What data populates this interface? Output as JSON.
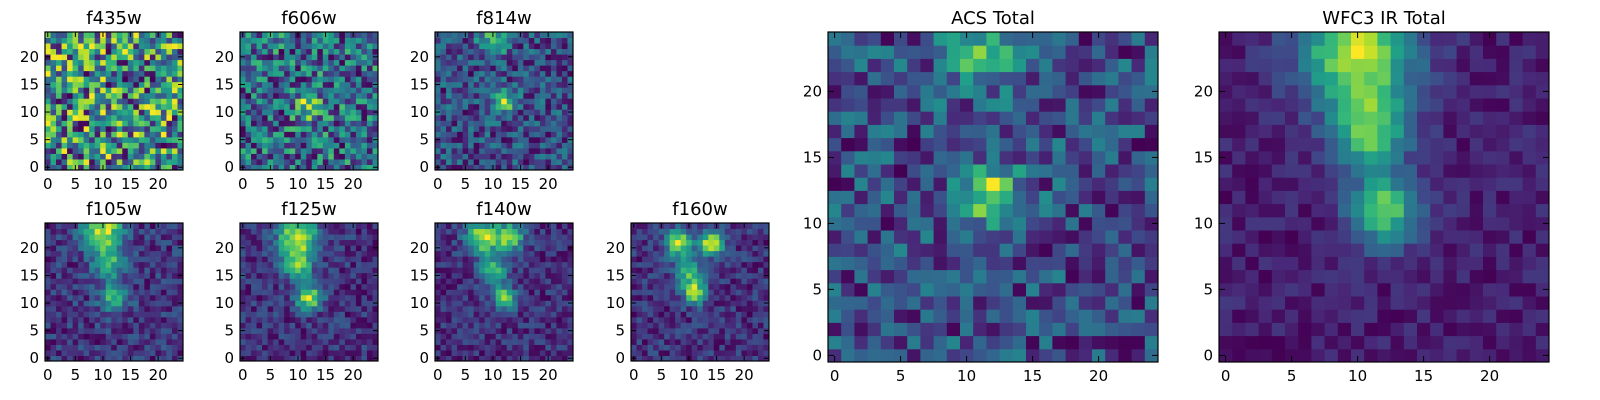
{
  "chart_data": [
    {
      "type": "heatmap",
      "title": "f435w",
      "colormap": "viridis",
      "grid": false,
      "xlim": [
        -0.5,
        24.5
      ],
      "ylim": [
        -0.5,
        24.5
      ],
      "xticks": [
        0,
        5,
        10,
        15,
        20
      ],
      "yticks": [
        0,
        5,
        10,
        15,
        20
      ],
      "description": "noise-dominated",
      "features": [],
      "background": 0.55,
      "noise": 0.55,
      "seed": 11
    },
    {
      "type": "heatmap",
      "title": "f606w",
      "colormap": "viridis",
      "grid": false,
      "xlim": [
        -0.5,
        24.5
      ],
      "ylim": [
        -0.5,
        24.5
      ],
      "xticks": [
        0,
        5,
        10,
        15,
        20
      ],
      "yticks": [
        0,
        5,
        10,
        15,
        20
      ],
      "features": [
        {
          "x": 12,
          "y": 11,
          "sigma": 1.6,
          "amp": 0.35
        }
      ],
      "background": 0.55,
      "noise": 0.5,
      "seed": 23
    },
    {
      "type": "heatmap",
      "title": "f814w",
      "colormap": "viridis",
      "grid": false,
      "xlim": [
        -0.5,
        24.5
      ],
      "ylim": [
        -0.5,
        24.5
      ],
      "xticks": [
        0,
        5,
        10,
        15,
        20
      ],
      "yticks": [
        0,
        5,
        10,
        15,
        20
      ],
      "features": [
        {
          "x": 12,
          "y": 12,
          "sigma": 1.5,
          "amp": 0.5
        },
        {
          "x": 10,
          "y": 23,
          "sigma": 2.0,
          "amp": 0.4
        }
      ],
      "background": 0.4,
      "noise": 0.42,
      "seed": 37
    },
    {
      "type": "heatmap",
      "title": "f105w",
      "colormap": "viridis",
      "grid": false,
      "xlim": [
        -0.5,
        24.5
      ],
      "ylim": [
        -0.5,
        24.5
      ],
      "xticks": [
        0,
        5,
        10,
        15,
        20
      ],
      "yticks": [
        0,
        5,
        10,
        15,
        20
      ],
      "features": [
        {
          "x": 10,
          "y": 23,
          "sigma": 2.5,
          "amp": 0.55
        },
        {
          "x": 11,
          "y": 17,
          "sigma": 2.0,
          "amp": 0.35
        },
        {
          "x": 12,
          "y": 11,
          "sigma": 1.8,
          "amp": 0.35
        }
      ],
      "background": 0.25,
      "noise": 0.22,
      "seed": 41
    },
    {
      "type": "heatmap",
      "title": "f125w",
      "colormap": "viridis",
      "grid": false,
      "xlim": [
        -0.5,
        24.5
      ],
      "ylim": [
        -0.5,
        24.5
      ],
      "xticks": [
        0,
        5,
        10,
        15,
        20
      ],
      "yticks": [
        0,
        5,
        10,
        15,
        20
      ],
      "features": [
        {
          "x": 10,
          "y": 22,
          "sigma": 2.5,
          "amp": 0.55
        },
        {
          "x": 10,
          "y": 17,
          "sigma": 1.8,
          "amp": 0.4
        },
        {
          "x": 12,
          "y": 11,
          "sigma": 1.6,
          "amp": 0.5
        }
      ],
      "background": 0.28,
      "noise": 0.2,
      "seed": 53
    },
    {
      "type": "heatmap",
      "title": "f140w",
      "colormap": "viridis",
      "grid": false,
      "xlim": [
        -0.5,
        24.5
      ],
      "ylim": [
        -0.5,
        24.5
      ],
      "xticks": [
        0,
        5,
        10,
        15,
        20
      ],
      "yticks": [
        0,
        5,
        10,
        15,
        20
      ],
      "features": [
        {
          "x": 8,
          "y": 22,
          "sigma": 2.0,
          "amp": 0.55
        },
        {
          "x": 13,
          "y": 22,
          "sigma": 1.8,
          "amp": 0.5
        },
        {
          "x": 10,
          "y": 16,
          "sigma": 1.8,
          "amp": 0.4
        },
        {
          "x": 12,
          "y": 11,
          "sigma": 1.5,
          "amp": 0.45
        }
      ],
      "background": 0.28,
      "noise": 0.2,
      "seed": 67
    },
    {
      "type": "heatmap",
      "title": "f160w",
      "colormap": "viridis",
      "grid": false,
      "xlim": [
        -0.5,
        24.5
      ],
      "ylim": [
        -0.5,
        24.5
      ],
      "xticks": [
        0,
        5,
        10,
        15,
        20
      ],
      "yticks": [
        0,
        5,
        10,
        15,
        20
      ],
      "features": [
        {
          "x": 8,
          "y": 21,
          "sigma": 1.6,
          "amp": 0.55
        },
        {
          "x": 14,
          "y": 21,
          "sigma": 1.6,
          "amp": 0.55
        },
        {
          "x": 10,
          "y": 16,
          "sigma": 1.8,
          "amp": 0.35
        },
        {
          "x": 11,
          "y": 12,
          "sigma": 1.5,
          "amp": 0.5
        }
      ],
      "background": 0.3,
      "noise": 0.2,
      "seed": 71
    },
    {
      "type": "heatmap",
      "title": "ACS Total",
      "colormap": "viridis",
      "grid": false,
      "xlim": [
        -0.5,
        24.5
      ],
      "ylim": [
        -0.5,
        24.5
      ],
      "xticks": [
        0,
        5,
        10,
        15,
        20
      ],
      "yticks": [
        0,
        5,
        10,
        15,
        20
      ],
      "features": [
        {
          "x": 12,
          "y": 12,
          "sigma": 1.6,
          "amp": 0.5
        },
        {
          "x": 11,
          "y": 23,
          "sigma": 2.0,
          "amp": 0.35
        }
      ],
      "background": 0.55,
      "noise": 0.35,
      "seed": 83
    },
    {
      "type": "heatmap",
      "title": "WFC3 IR Total",
      "colormap": "viridis",
      "grid": false,
      "xlim": [
        -0.5,
        24.5
      ],
      "ylim": [
        -0.5,
        24.5
      ],
      "xticks": [
        0,
        5,
        10,
        15,
        20
      ],
      "yticks": [
        0,
        5,
        10,
        15,
        20
      ],
      "features": [
        {
          "x": 10,
          "y": 23,
          "sigma": 3.0,
          "amp": 0.6
        },
        {
          "x": 11,
          "y": 17,
          "sigma": 2.0,
          "amp": 0.45
        },
        {
          "x": 12,
          "y": 11,
          "sigma": 1.8,
          "amp": 0.5
        }
      ],
      "background": 0.28,
      "noise": 0.12,
      "seed": 97
    }
  ]
}
